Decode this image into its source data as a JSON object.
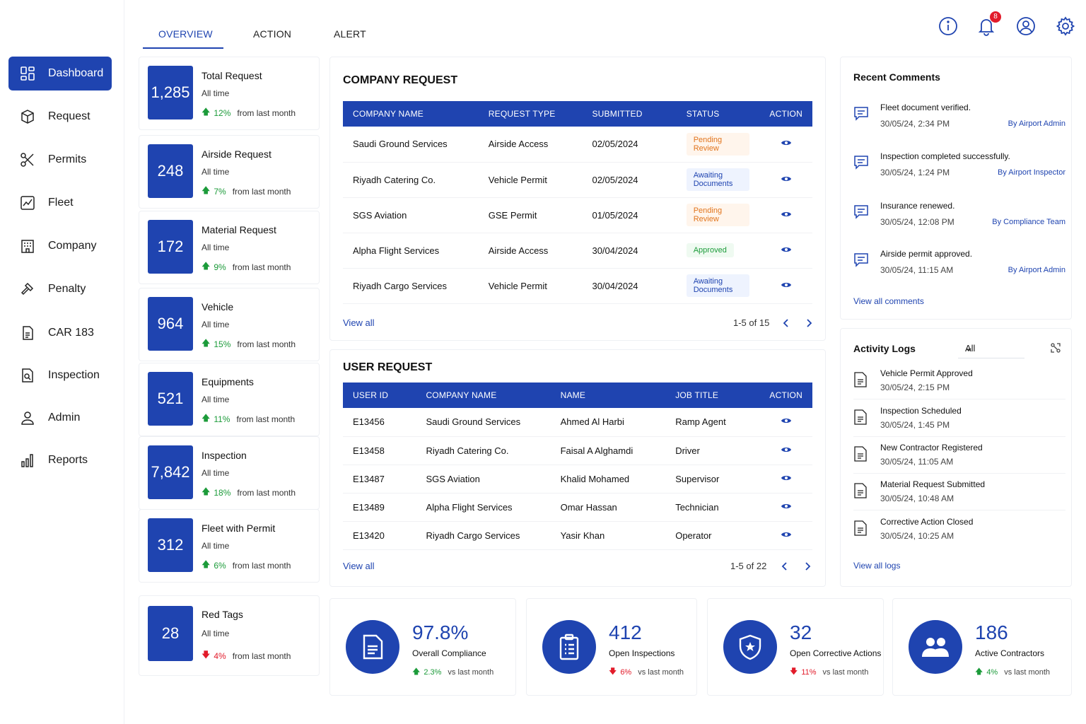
{
  "nav": [
    {
      "label": "Dashboard",
      "icon": "dashboard-icon",
      "active": true
    },
    {
      "label": "Request",
      "icon": "box-icon"
    },
    {
      "label": "Permits",
      "icon": "scissors-icon"
    },
    {
      "label": "Fleet",
      "icon": "chart-line-icon"
    },
    {
      "label": "Company",
      "icon": "building-icon"
    },
    {
      "label": "Penalty",
      "icon": "gavel-icon"
    },
    {
      "label": "CAR 183",
      "icon": "document-icon"
    },
    {
      "label": "Inspection",
      "icon": "inspect-icon"
    },
    {
      "label": "Admin",
      "icon": "user-icon"
    },
    {
      "label": "Reports",
      "icon": "bar-chart-icon"
    }
  ],
  "tabs": [
    "OVERVIEW",
    "ACTION",
    "ALERT"
  ],
  "notifications_count": "8",
  "stats": [
    {
      "value": "1,285",
      "title": "Total Request",
      "sub": "All time",
      "dir": "up",
      "pct": "12%",
      "note": "from last month"
    },
    {
      "value": "248",
      "title": "Airside Request",
      "sub": "All time",
      "dir": "up",
      "pct": "7%",
      "note": "from last month"
    },
    {
      "value": "172",
      "title": "Material Request",
      "sub": "All time",
      "dir": "up",
      "pct": "9%",
      "note": "from last month"
    },
    {
      "value": "964",
      "title": "Vehicle",
      "sub": "All time",
      "dir": "up",
      "pct": "15%",
      "note": "from last month"
    },
    {
      "value": "521",
      "title": "Equipments",
      "sub": "All time",
      "dir": "up",
      "pct": "11%",
      "note": "from last month"
    },
    {
      "value": "7,842",
      "title": "Inspection",
      "sub": "All time",
      "dir": "up",
      "pct": "18%",
      "note": "from last month"
    },
    {
      "value": "312",
      "title": "Fleet with Permit",
      "sub": "All time",
      "dir": "up",
      "pct": "6%",
      "note": "from last month"
    },
    {
      "value": "28",
      "title": "Red Tags",
      "sub": "All time",
      "dir": "down",
      "pct": "4%",
      "note": "from last month"
    }
  ],
  "company_request": {
    "title": "COMPANY REQUEST",
    "headers": [
      "COMPANY NAME",
      "REQUEST TYPE",
      "SUBMITTED",
      "STATUS",
      "ACTION"
    ],
    "rows": [
      {
        "company": "Saudi Ground Services",
        "type": "Airside Access",
        "submitted": "02/05/2024",
        "status": "Pending Review",
        "kind": "pending"
      },
      {
        "company": "Riyadh Catering Co.",
        "type": "Vehicle Permit",
        "submitted": "02/05/2024",
        "status": "Awaiting Documents",
        "kind": "await"
      },
      {
        "company": "SGS Aviation",
        "type": "GSE Permit",
        "submitted": "01/05/2024",
        "status": "Pending Review",
        "kind": "pending"
      },
      {
        "company": "Alpha Flight Services",
        "type": "Airside Access",
        "submitted": "30/04/2024",
        "status": "Approved",
        "kind": "approved"
      },
      {
        "company": "Riyadh Cargo Services",
        "type": "Vehicle Permit",
        "submitted": "30/04/2024",
        "status": "Awaiting Documents",
        "kind": "await"
      }
    ],
    "view_all": "View all",
    "pagination": "1-5 of 15"
  },
  "user_request": {
    "title": "USER REQUEST",
    "headers": [
      "USER ID",
      "COMPANY NAME",
      "NAME",
      "JOB TITLE",
      "ACTION"
    ],
    "rows": [
      {
        "id": "E13456",
        "company": "Saudi Ground Services",
        "name": "Ahmed Al Harbi",
        "job": "Ramp Agent"
      },
      {
        "id": "E13458",
        "company": "Riyadh Catering Co.",
        "name": "Faisal A Alghamdi",
        "job": "Driver"
      },
      {
        "id": "E13487",
        "company": "SGS Aviation",
        "name": "Khalid Mohamed",
        "job": "Supervisor"
      },
      {
        "id": "E13489",
        "company": "Alpha Flight Services",
        "name": "Omar Hassan",
        "job": "Technician"
      },
      {
        "id": "E13420",
        "company": "Riyadh Cargo Services",
        "name": "Yasir Khan",
        "job": "Operator"
      }
    ],
    "view_all": "View all",
    "pagination": "1-5 of 22"
  },
  "comments": {
    "title": "Recent Comments",
    "items": [
      {
        "text": "Fleet document verified.",
        "time": "30/05/24, 2:34 PM",
        "by": "By Airport Admin"
      },
      {
        "text": "Inspection completed successfully.",
        "time": "30/05/24, 1:24 PM",
        "by": "By Airport Inspector"
      },
      {
        "text": "Insurance renewed.",
        "time": "30/05/24, 12:08 PM",
        "by": "By Compliance Team"
      },
      {
        "text": "Airside permit approved.",
        "time": "30/05/24, 11:15 AM",
        "by": "By Airport Admin"
      }
    ],
    "view_all": "View all comments"
  },
  "activity": {
    "title": "Activity Logs",
    "filter": "All",
    "items": [
      {
        "text": "Vehicle Permit Approved",
        "time": "30/05/24, 2:15 PM"
      },
      {
        "text": "Inspection Scheduled",
        "time": "30/05/24, 1:45 PM"
      },
      {
        "text": "New Contractor Registered",
        "time": "30/05/24, 11:05 AM"
      },
      {
        "text": "Material Request Submitted",
        "time": "30/05/24, 10:48 AM"
      },
      {
        "text": "Corrective Action Closed",
        "time": "30/05/24, 10:25 AM"
      }
    ],
    "view_all": "View all logs"
  },
  "kpis": [
    {
      "value": "97.8%",
      "label": "Overall Compliance",
      "dir": "up",
      "pct": "2.3%",
      "note": "vs last month",
      "icon": "document-icon"
    },
    {
      "value": "412",
      "label": "Open Inspections",
      "dir": "down",
      "pct": "6%",
      "note": "vs last month",
      "icon": "clipboard-icon"
    },
    {
      "value": "32",
      "label": "Open Corrective Actions",
      "dir": "down",
      "pct": "11%",
      "note": "vs last month",
      "icon": "shield-icon"
    },
    {
      "value": "186",
      "label": "Active Contractors",
      "dir": "up",
      "pct": "4%",
      "note": "vs last month",
      "icon": "users-icon"
    }
  ],
  "colors": {
    "primary": "#1f44b0",
    "up": "#1c9b3a",
    "down": "#e21b2a",
    "pending": "#e1741c"
  }
}
